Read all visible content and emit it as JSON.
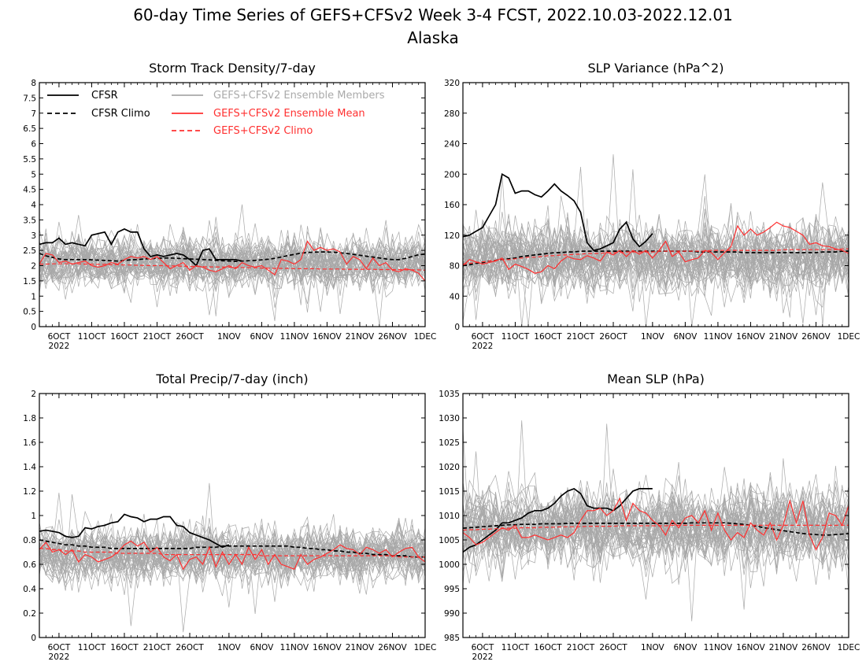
{
  "title_line1": "60-day Time Series of GEFS+CFSv2 Week 3-4 FCST, 2022.10.03-2022.12.01",
  "title_line2": "Alaska",
  "x_axis": {
    "tick_labels": [
      "6OCT",
      "11OCT",
      "16OCT",
      "21OCT",
      "26OCT",
      "1NOV",
      "6NOV",
      "11NOV",
      "16NOV",
      "21NOV",
      "26NOV",
      "1DEC"
    ],
    "tick_days": [
      3,
      8,
      13,
      18,
      23,
      29,
      34,
      39,
      44,
      49,
      54,
      59
    ],
    "year_label": "2022",
    "range_days": [
      0,
      59
    ]
  },
  "legend": {
    "cfsr": "CFSR",
    "cfsr_climo": "CFSR Climo",
    "members": "GEFS+CFSv2 Ensemble Members",
    "ens_mean": "GEFS+CFSv2 Ensemble Mean",
    "gefs_climo": "GEFS+CFSv2 Climo"
  },
  "colors": {
    "cfsr": "#000000",
    "members": "#a8a8a8",
    "ens_mean": "#ff3030",
    "legend_members_text": "#aaaaaa",
    "legend_red_text": "#ff3030"
  },
  "chart_data": [
    {
      "type": "line",
      "title": "Storm Track Density/7-day",
      "ylim": [
        0,
        8
      ],
      "yticks": [
        "0",
        "0.5",
        "1",
        "1.5",
        "2",
        "2.5",
        "3",
        "3.5",
        "4",
        "4.5",
        "5",
        "5.5",
        "6",
        "6.5",
        "7",
        "7.5",
        "8"
      ],
      "members_center": 2.1,
      "members_spread": 0.75,
      "series": [
        {
          "name": "CFSR",
          "values": [
            2.7,
            2.75,
            2.75,
            2.9,
            2.7,
            2.75,
            2.7,
            2.65,
            3.0,
            3.05,
            3.1,
            2.7,
            3.1,
            3.2,
            3.1,
            3.1,
            2.55,
            2.3,
            2.35,
            2.3,
            2.35,
            2.4,
            2.35,
            2.2,
            2.0,
            2.5,
            2.55,
            2.2,
            2.2,
            2.2,
            2.2,
            2.15
          ]
        },
        {
          "name": "CFSR Climo",
          "values": [
            2.4,
            2.32,
            2.27,
            2.22,
            2.2,
            2.2,
            2.2,
            2.2,
            2.19,
            2.18,
            2.17,
            2.16,
            2.15,
            2.17,
            2.19,
            2.2,
            2.22,
            2.23,
            2.24,
            2.25,
            2.25,
            2.24,
            2.23,
            2.22,
            2.21,
            2.2,
            2.19,
            2.17,
            2.16,
            2.15,
            2.14,
            2.15,
            2.16,
            2.17,
            2.19,
            2.21,
            2.24,
            2.28,
            2.33,
            2.37,
            2.41,
            2.43,
            2.44,
            2.45,
            2.45,
            2.44,
            2.42,
            2.4,
            2.37,
            2.34,
            2.31,
            2.28,
            2.25,
            2.22,
            2.2,
            2.2,
            2.24,
            2.3,
            2.36,
            2.38
          ]
        },
        {
          "name": "GEFS+CFSv2 Ensemble Mean",
          "values": [
            2.05,
            2.4,
            2.35,
            2.1,
            2.15,
            2.05,
            2.1,
            2.15,
            2.0,
            1.95,
            2.0,
            2.1,
            2.05,
            2.2,
            2.3,
            2.25,
            2.3,
            2.2,
            2.3,
            2.1,
            1.9,
            2.0,
            2.1,
            1.85,
            2.0,
            1.95,
            1.85,
            1.8,
            1.9,
            2.0,
            1.9,
            2.1,
            2.0,
            1.95,
            2.0,
            1.85,
            1.7,
            2.2,
            2.15,
            2.05,
            2.2,
            2.8,
            2.5,
            2.6,
            2.5,
            2.55,
            2.45,
            2.05,
            2.3,
            2.2,
            1.9,
            2.25,
            2.0,
            2.1,
            1.85,
            1.8,
            1.9,
            1.85,
            1.75,
            1.5
          ]
        },
        {
          "name": "GEFS+CFSv2 Climo",
          "values": [
            2.05,
            2.05,
            2.06,
            2.06,
            2.06,
            2.06,
            2.06,
            2.05,
            2.05,
            2.04,
            2.04,
            2.03,
            2.03,
            2.02,
            2.02,
            2.01,
            2.01,
            2.0,
            2.0,
            2.0,
            1.99,
            1.99,
            1.98,
            1.98,
            1.97,
            1.97,
            1.96,
            1.96,
            1.95,
            1.95,
            1.94,
            1.94,
            1.93,
            1.93,
            1.92,
            1.92,
            1.91,
            1.91,
            1.91,
            1.9,
            1.9,
            1.9,
            1.9,
            1.89,
            1.89,
            1.89,
            1.89,
            1.88,
            1.88,
            1.88,
            1.88,
            1.88,
            1.87,
            1.87,
            1.87,
            1.87,
            1.86,
            1.86,
            1.86,
            1.85
          ]
        }
      ]
    },
    {
      "type": "line",
      "title": "SLP Variance (hPa^2)",
      "ylim": [
        0,
        320
      ],
      "yticks": [
        "0",
        "40",
        "80",
        "120",
        "160",
        "200",
        "240",
        "280",
        "320"
      ],
      "members_center": 90,
      "members_spread": 40,
      "series": [
        {
          "name": "CFSR",
          "values": [
            118,
            120,
            125,
            130,
            145,
            160,
            200,
            195,
            175,
            178,
            178,
            173,
            170,
            178,
            187,
            178,
            172,
            165,
            150,
            110,
            100,
            102,
            106,
            110,
            128,
            137,
            115,
            105,
            112,
            122
          ]
        },
        {
          "name": "CFSR Climo",
          "values": [
            80,
            81,
            83,
            84,
            86,
            87,
            88,
            89,
            90,
            92,
            93,
            94,
            95,
            96,
            97,
            97,
            98,
            98,
            99,
            99,
            99,
            99,
            99,
            99,
            99,
            99,
            99,
            99,
            99,
            99,
            99,
            99,
            99,
            99,
            99,
            99,
            98,
            98,
            98,
            98,
            98,
            98,
            98,
            97,
            97,
            97,
            97,
            97,
            97,
            97,
            97,
            97,
            97,
            97,
            97,
            98,
            98,
            98,
            99,
            99
          ]
        },
        {
          "name": "GEFS+CFSv2 Ensemble Mean",
          "values": [
            80,
            88,
            85,
            82,
            84,
            86,
            90,
            75,
            82,
            79,
            75,
            70,
            72,
            80,
            76,
            86,
            92,
            89,
            88,
            93,
            90,
            86,
            98,
            94,
            100,
            92,
            100,
            95,
            100,
            90,
            100,
            112,
            92,
            98,
            85,
            88,
            90,
            100,
            97,
            88,
            97,
            105,
            132,
            120,
            128,
            120,
            124,
            130,
            137,
            132,
            130,
            125,
            120,
            108,
            110,
            106,
            105,
            102,
            100,
            96
          ]
        },
        {
          "name": "GEFS+CFSv2 Climo",
          "values": [
            82,
            83,
            84,
            85,
            86,
            87,
            88,
            88,
            89,
            90,
            91,
            91,
            92,
            93,
            93,
            94,
            94,
            95,
            95,
            96,
            96,
            96,
            97,
            97,
            97,
            98,
            98,
            98,
            98,
            98,
            99,
            99,
            99,
            99,
            99,
            99,
            99,
            99,
            100,
            100,
            100,
            100,
            100,
            100,
            100,
            100,
            100,
            100,
            100,
            101,
            101,
            101,
            101,
            101,
            101,
            101,
            101,
            101,
            102,
            102
          ]
        }
      ]
    },
    {
      "type": "line",
      "title": "Total Precip/7-day (inch)",
      "ylim": [
        0,
        2
      ],
      "yticks": [
        "0",
        "0.2",
        "0.4",
        "0.6",
        "0.8",
        "1",
        "1.2",
        "1.4",
        "1.6",
        "1.8",
        "2"
      ],
      "members_center": 0.68,
      "members_spread": 0.2,
      "series": [
        {
          "name": "CFSR",
          "values": [
            0.87,
            0.88,
            0.87,
            0.86,
            0.83,
            0.82,
            0.83,
            0.9,
            0.89,
            0.91,
            0.92,
            0.94,
            0.95,
            1.01,
            0.99,
            0.98,
            0.95,
            0.97,
            0.97,
            0.99,
            0.99,
            0.92,
            0.91,
            0.86,
            0.84,
            0.82,
            0.8,
            0.77,
            0.74,
            0.76
          ]
        },
        {
          "name": "CFSR Climo",
          "values": [
            0.8,
            0.79,
            0.78,
            0.77,
            0.76,
            0.76,
            0.75,
            0.75,
            0.74,
            0.74,
            0.74,
            0.73,
            0.73,
            0.73,
            0.73,
            0.73,
            0.73,
            0.73,
            0.73,
            0.73,
            0.73,
            0.73,
            0.73,
            0.73,
            0.74,
            0.74,
            0.74,
            0.74,
            0.75,
            0.75,
            0.75,
            0.75,
            0.75,
            0.75,
            0.75,
            0.75,
            0.75,
            0.75,
            0.75,
            0.74,
            0.74,
            0.73,
            0.73,
            0.72,
            0.72,
            0.71,
            0.71,
            0.7,
            0.7,
            0.69,
            0.69,
            0.68,
            0.68,
            0.68,
            0.67,
            0.67,
            0.67,
            0.66,
            0.66,
            0.66
          ]
        },
        {
          "name": "GEFS+CFSv2 Ensemble Mean",
          "values": [
            0.72,
            0.78,
            0.7,
            0.72,
            0.68,
            0.72,
            0.62,
            0.68,
            0.66,
            0.62,
            0.64,
            0.66,
            0.7,
            0.76,
            0.79,
            0.75,
            0.78,
            0.7,
            0.74,
            0.66,
            0.63,
            0.68,
            0.56,
            0.64,
            0.66,
            0.6,
            0.74,
            0.58,
            0.7,
            0.6,
            0.68,
            0.6,
            0.74,
            0.64,
            0.72,
            0.6,
            0.68,
            0.6,
            0.58,
            0.56,
            0.68,
            0.6,
            0.64,
            0.66,
            0.69,
            0.72,
            0.76,
            0.73,
            0.72,
            0.68,
            0.74,
            0.72,
            0.69,
            0.72,
            0.66,
            0.7,
            0.73,
            0.74,
            0.66,
            0.62
          ]
        },
        {
          "name": "GEFS+CFSv2 Climo",
          "values": [
            0.73,
            0.73,
            0.72,
            0.72,
            0.71,
            0.71,
            0.71,
            0.7,
            0.7,
            0.7,
            0.7,
            0.7,
            0.69,
            0.69,
            0.69,
            0.69,
            0.69,
            0.69,
            0.69,
            0.68,
            0.68,
            0.68,
            0.68,
            0.68,
            0.68,
            0.68,
            0.68,
            0.68,
            0.68,
            0.68,
            0.68,
            0.68,
            0.68,
            0.68,
            0.67,
            0.67,
            0.67,
            0.67,
            0.67,
            0.67,
            0.67,
            0.67,
            0.67,
            0.67,
            0.67,
            0.67,
            0.67,
            0.67,
            0.67,
            0.67,
            0.67,
            0.67,
            0.67,
            0.67,
            0.67,
            0.66,
            0.66,
            0.66,
            0.66,
            0.66
          ]
        }
      ]
    },
    {
      "type": "line",
      "title": "Mean SLP (hPa)",
      "ylim": [
        985,
        1035
      ],
      "yticks": [
        "985",
        "990",
        "995",
        "1000",
        "1005",
        "1010",
        "1015",
        "1020",
        "1025",
        "1030",
        "1035"
      ],
      "members_center": 1007.5,
      "members_spread": 7,
      "series": [
        {
          "name": "CFSR",
          "values": [
            1002.5,
            1003.5,
            1004,
            1005,
            1006,
            1007,
            1008.5,
            1008.5,
            1009,
            1009.5,
            1010.5,
            1011,
            1011,
            1011.5,
            1012.5,
            1014,
            1015,
            1015.5,
            1014.5,
            1012,
            1011.5,
            1011.5,
            1011.5,
            1011,
            1012,
            1013.5,
            1015,
            1015.5,
            1015.5,
            1015.5
          ]
        },
        {
          "name": "CFSR Climo",
          "values": [
            1007.4,
            1007.5,
            1007.6,
            1007.7,
            1007.8,
            1007.9,
            1008,
            1008.1,
            1008.1,
            1008.2,
            1008.2,
            1008.2,
            1008.3,
            1008.3,
            1008.3,
            1008.3,
            1008.4,
            1008.4,
            1008.4,
            1008.4,
            1008.4,
            1008.4,
            1008.4,
            1008.4,
            1008.4,
            1008.4,
            1008.4,
            1008.4,
            1008.4,
            1008.4,
            1008.4,
            1008.4,
            1008.4,
            1008.4,
            1008.4,
            1008.5,
            1008.5,
            1008.5,
            1008.5,
            1008.5,
            1008.5,
            1008.4,
            1008.3,
            1008.2,
            1008,
            1007.8,
            1007.5,
            1007.3,
            1007.1,
            1006.9,
            1006.7,
            1006.5,
            1006.3,
            1006.2,
            1006.1,
            1006,
            1006,
            1006.1,
            1006.2,
            1006.3
          ]
        },
        {
          "name": "GEFS+CFSv2 Ensemble Mean",
          "values": [
            1006.5,
            1005.5,
            1004,
            1004.5,
            1005.5,
            1006.5,
            1007.5,
            1007,
            1008,
            1005.5,
            1005.5,
            1006,
            1005.5,
            1005,
            1005.5,
            1006,
            1005.5,
            1006.5,
            1009,
            1011,
            1011,
            1011.5,
            1010,
            1011,
            1013.5,
            1009,
            1012.5,
            1011,
            1010.5,
            1009,
            1008,
            1006,
            1009,
            1007.5,
            1009.5,
            1010,
            1008.5,
            1011,
            1007,
            1010.5,
            1007,
            1005,
            1006.5,
            1005.5,
            1008.5,
            1007,
            1006,
            1008.5,
            1005,
            1008,
            1013,
            1008.5,
            1013,
            1006,
            1003,
            1005.5,
            1010.5,
            1010,
            1008,
            1012
          ]
        },
        {
          "name": "GEFS+CFSv2 Climo",
          "values": [
            1007,
            1007.1,
            1007.1,
            1007.2,
            1007.2,
            1007.3,
            1007.3,
            1007.4,
            1007.4,
            1007.5,
            1007.5,
            1007.5,
            1007.6,
            1007.6,
            1007.6,
            1007.7,
            1007.7,
            1007.7,
            1007.7,
            1007.8,
            1007.8,
            1007.8,
            1007.8,
            1007.8,
            1007.9,
            1007.9,
            1007.9,
            1007.9,
            1007.9,
            1007.9,
            1007.9,
            1007.9,
            1008,
            1008,
            1008,
            1008,
            1008,
            1008,
            1008,
            1008,
            1008,
            1008,
            1008,
            1008,
            1008,
            1008,
            1008,
            1008,
            1008,
            1008,
            1008,
            1008,
            1008,
            1008,
            1008,
            1008,
            1008,
            1008,
            1008,
            1008
          ]
        }
      ]
    }
  ]
}
